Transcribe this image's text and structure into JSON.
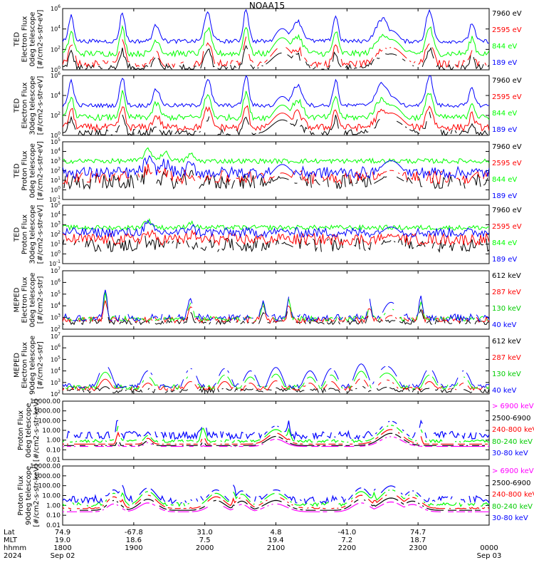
{
  "title": "NOAA15",
  "chart_data": [
    {
      "type": "line",
      "ylabel": [
        "TED",
        "Electron Flux",
        "0deg telescope",
        "[#/cm2-s-str-eV]"
      ],
      "ylog": true,
      "ylim_exp": [
        0,
        6
      ],
      "tick_labels": [
        "10^0",
        "10^2",
        "10^4",
        "10^6"
      ],
      "legend": [
        {
          "text": "7960 eV",
          "color": "#000000"
        },
        {
          "text": "2595 eV",
          "color": "#ff0000"
        },
        {
          "text": "844 eV",
          "color": "#00ff00"
        },
        {
          "text": "189 eV",
          "color": "#0000ff"
        }
      ],
      "series": [
        {
          "name": "7960 eV",
          "color": "#000000",
          "base": 0.2,
          "noise": 0.35,
          "sparse": true
        },
        {
          "name": "2595 eV",
          "color": "#ff0000",
          "base": 0.6,
          "noise": 0.35,
          "sparse": true
        },
        {
          "name": "844 eV",
          "color": "#00ff00",
          "base": 1.6,
          "noise": 0.3
        },
        {
          "name": "189 eV",
          "color": "#0000ff",
          "base": 2.8,
          "noise": 0.2
        }
      ],
      "peaks": [
        [
          0.02,
          2.5,
          0.006
        ],
        [
          0.14,
          2.8,
          0.006
        ],
        [
          0.22,
          1.6,
          0.008
        ],
        [
          0.34,
          2.8,
          0.008
        ],
        [
          0.43,
          3.2,
          0.006
        ],
        [
          0.55,
          2.0,
          0.012
        ],
        [
          0.64,
          2.5,
          0.006
        ],
        [
          0.75,
          2.2,
          0.015
        ],
        [
          0.86,
          3.0,
          0.008
        ],
        [
          0.96,
          1.8,
          0.006
        ]
      ],
      "bumps": [
        [
          0.515,
          3.2,
          0.025
        ],
        [
          0.77,
          3.0,
          0.03
        ]
      ]
    },
    {
      "type": "line",
      "ylabel": [
        "TED",
        "Electron Flux",
        "30deg telescope",
        "[#/cm2-s-str-eV]"
      ],
      "ylog": true,
      "ylim_exp": [
        0,
        6
      ],
      "tick_labels": [
        "10^0",
        "10^2",
        "10^4",
        "10^6"
      ],
      "legend": [
        {
          "text": "7960 eV",
          "color": "#000000"
        },
        {
          "text": "2595 eV",
          "color": "#ff0000"
        },
        {
          "text": "844 eV",
          "color": "#00ff00"
        },
        {
          "text": "189 eV",
          "color": "#0000ff"
        }
      ],
      "series": [
        {
          "name": "7960 eV",
          "color": "#000000",
          "base": 0.2,
          "noise": 0.4,
          "sparse": true
        },
        {
          "name": "2595 eV",
          "color": "#ff0000",
          "base": 0.8,
          "noise": 0.35
        },
        {
          "name": "844 eV",
          "color": "#00ff00",
          "base": 1.8,
          "noise": 0.3
        },
        {
          "name": "189 eV",
          "color": "#0000ff",
          "base": 3.0,
          "noise": 0.2
        }
      ],
      "peaks": [
        [
          0.02,
          2.5,
          0.006
        ],
        [
          0.14,
          2.8,
          0.006
        ],
        [
          0.22,
          1.6,
          0.008
        ],
        [
          0.34,
          2.6,
          0.008
        ],
        [
          0.43,
          3.0,
          0.006
        ],
        [
          0.55,
          2.0,
          0.012
        ],
        [
          0.64,
          2.5,
          0.006
        ],
        [
          0.75,
          2.2,
          0.015
        ],
        [
          0.86,
          3.0,
          0.008
        ],
        [
          0.96,
          1.8,
          0.006
        ]
      ],
      "bumps": [
        [
          0.515,
          3.0,
          0.025
        ],
        [
          0.77,
          3.0,
          0.03
        ]
      ]
    },
    {
      "type": "line",
      "ylabel": [
        "TED",
        "Proton Flux",
        "0deg telescope",
        "[#/cm2-s-str-eV]"
      ],
      "ylog": true,
      "ylim_exp": [
        -1,
        5
      ],
      "tick_labels": [
        "10^-1",
        "10^0",
        "10^1",
        "10^2",
        "10^3",
        "10^4",
        "10^5"
      ],
      "legend": [
        {
          "text": "7960 eV",
          "color": "#000000"
        },
        {
          "text": "2595 eV",
          "color": "#ff0000"
        },
        {
          "text": "844 eV",
          "color": "#00ff00"
        },
        {
          "text": "189 eV",
          "color": "#0000ff"
        }
      ],
      "series": [
        {
          "name": "7960 eV",
          "color": "#000000",
          "base": 0.8,
          "noise": 0.8,
          "sparse": true
        },
        {
          "name": "2595 eV",
          "color": "#ff0000",
          "base": 1.3,
          "noise": 0.7,
          "sparse": true
        },
        {
          "name": "844 eV",
          "color": "#00ff00",
          "base": 3.0,
          "noise": 0.25
        },
        {
          "name": "189 eV",
          "color": "#0000ff",
          "base": 1.8,
          "noise": 0.6
        }
      ],
      "peaks": [
        [
          0.2,
          1.3,
          0.01
        ],
        [
          0.24,
          1.0,
          0.01
        ],
        [
          0.3,
          0.8,
          0.008
        ]
      ],
      "bumps": [
        [
          0.515,
          2.2,
          0.025
        ],
        [
          0.77,
          2.6,
          0.03
        ]
      ]
    },
    {
      "type": "line",
      "ylabel": [
        "TED",
        "Proton Flux",
        "30deg telescope",
        "[#/cm2-s-str-eV]"
      ],
      "ylog": true,
      "ylim_exp": [
        -1,
        5
      ],
      "tick_labels": [
        "10^-1",
        "10^0",
        "10^1",
        "10^2",
        "10^3",
        "10^4",
        "10^5"
      ],
      "legend": [
        {
          "text": "7960 eV",
          "color": "#000000"
        },
        {
          "text": "2595 eV",
          "color": "#ff0000"
        },
        {
          "text": "844 eV",
          "color": "#00ff00"
        },
        {
          "text": "189 eV",
          "color": "#0000ff"
        }
      ],
      "series": [
        {
          "name": "7960 eV",
          "color": "#000000",
          "base": 0.9,
          "noise": 0.7,
          "sparse": true
        },
        {
          "name": "2595 eV",
          "color": "#ff0000",
          "base": 1.5,
          "noise": 0.6
        },
        {
          "name": "844 eV",
          "color": "#00ff00",
          "base": 2.7,
          "noise": 0.25
        },
        {
          "name": "189 eV",
          "color": "#0000ff",
          "base": 2.2,
          "noise": 0.5
        }
      ],
      "peaks": [
        [
          0.2,
          0.8,
          0.01
        ],
        [
          0.3,
          0.6,
          0.008
        ]
      ],
      "bumps": [
        [
          0.515,
          1.8,
          0.025
        ],
        [
          0.77,
          2.2,
          0.03
        ]
      ]
    },
    {
      "type": "line",
      "ylabel": [
        "MEPED",
        "Electron Flux",
        "0deg telescope",
        "[#/cm2-s-str]"
      ],
      "ylog": true,
      "ylim_exp": [
        2,
        7
      ],
      "tick_labels": [
        "10^2",
        "10^3",
        "10^4",
        "10^5",
        "10^6",
        "10^7"
      ],
      "legend": [
        {
          "text": "612 keV",
          "color": "#000000"
        },
        {
          "text": "287 keV",
          "color": "#ff0000"
        },
        {
          "text": "130 keV",
          "color": "#00cc00"
        },
        {
          "text": "40 keV",
          "color": "#0000ff"
        }
      ],
      "series": [
        {
          "name": "612 keV",
          "color": "#000000",
          "base": 2.6,
          "noise": 0.2,
          "sparse": true
        },
        {
          "name": "287 keV",
          "color": "#ff0000",
          "base": 2.8,
          "noise": 0.25,
          "sparse": true
        },
        {
          "name": "130 keV",
          "color": "#00ff00",
          "base": 2.9,
          "noise": 0.2,
          "sparse": true
        },
        {
          "name": "40 keV",
          "color": "#0000ff",
          "base": 3.0,
          "noise": 0.3,
          "sparse": true
        }
      ],
      "peaks": [
        [
          0.1,
          2.5,
          0.004
        ],
        [
          0.3,
          1.5,
          0.005
        ],
        [
          0.47,
          1.5,
          0.004
        ],
        [
          0.53,
          1.8,
          0.004
        ],
        [
          0.72,
          1.4,
          0.004
        ],
        [
          0.84,
          1.8,
          0.004
        ]
      ],
      "bumps": [
        [
          0.47,
          1.5,
          0.02
        ],
        [
          0.77,
          3.2,
          0.025
        ]
      ]
    },
    {
      "type": "line",
      "ylabel": [
        "MEPED",
        "Electron Flux",
        "90deg telescope",
        "[#/cm2-s-str]"
      ],
      "ylog": true,
      "ylim_exp": [
        2,
        7
      ],
      "tick_labels": [
        "10^2",
        "10^3",
        "10^4",
        "10^5",
        "10^6",
        "10^7"
      ],
      "legend": [
        {
          "text": "612 keV",
          "color": "#000000"
        },
        {
          "text": "287 keV",
          "color": "#ff0000"
        },
        {
          "text": "130 keV",
          "color": "#00cc00"
        },
        {
          "text": "40 keV",
          "color": "#0000ff"
        }
      ],
      "series": [
        {
          "name": "612 keV",
          "color": "#000000",
          "base": 2.3,
          "noise": 0.2,
          "sparse": true
        },
        {
          "name": "287 keV",
          "color": "#ff0000",
          "base": 2.5,
          "noise": 0.2,
          "sparse": true
        },
        {
          "name": "130 keV",
          "color": "#00ff00",
          "base": 2.6,
          "noise": 0.2,
          "sparse": true
        },
        {
          "name": "40 keV",
          "color": "#0000ff",
          "base": 2.7,
          "noise": 0.2,
          "sparse": true
        }
      ],
      "peaks": [],
      "bumps": [
        [
          0.1,
          3.5,
          0.02
        ],
        [
          0.2,
          3.0,
          0.02
        ],
        [
          0.3,
          3.2,
          0.02
        ],
        [
          0.38,
          3.2,
          0.02
        ],
        [
          0.44,
          3.0,
          0.02
        ],
        [
          0.5,
          3.3,
          0.02
        ],
        [
          0.58,
          3.0,
          0.02
        ],
        [
          0.63,
          3.2,
          0.02
        ],
        [
          0.7,
          3.6,
          0.02
        ],
        [
          0.76,
          3.4,
          0.03
        ],
        [
          0.86,
          3.2,
          0.02
        ],
        [
          0.94,
          3.0,
          0.02
        ]
      ]
    },
    {
      "type": "scatter",
      "ylabel": [
        "Proton Flux",
        "0deg telescope",
        "[#/cm2-s-str-keV]"
      ],
      "ylog": true,
      "ylim_exp": [
        -2,
        4
      ],
      "tick_labels": [
        "0.01",
        "0.10",
        "1.00",
        "10.00",
        "100.00",
        "1000.00",
        "10000.00"
      ],
      "legend": [
        {
          "text": "> 6900 keV",
          "color": "#ff00ff"
        },
        {
          "text": "2500-6900",
          "color": "#000000"
        },
        {
          "text": "240-800 keV",
          "color": "#ff0000"
        },
        {
          "text": "80-240 keV",
          "color": "#00cc00"
        },
        {
          "text": "30-80 keV",
          "color": "#0000ff"
        }
      ],
      "series": [
        {
          "name": "> 6900 keV",
          "color": "#ff00ff",
          "base": -1.5,
          "noise": 0.1,
          "sparse": true
        },
        {
          "name": "2500-6900",
          "color": "#000000",
          "base": -1.2,
          "noise": 0.1,
          "sparse": true
        },
        {
          "name": "240-800 keV",
          "color": "#ff0000",
          "base": -0.7,
          "noise": 0.15,
          "sparse": true
        },
        {
          "name": "80-240 keV",
          "color": "#00ff00",
          "base": -0.1,
          "noise": 0.15,
          "sparse": true
        },
        {
          "name": "30-80 keV",
          "color": "#0000ff",
          "base": 0.5,
          "noise": 0.4,
          "sparse": true
        }
      ],
      "peaks": [
        [
          0.13,
          1.8,
          0.004
        ],
        [
          0.33,
          1.5,
          0.005
        ],
        [
          0.53,
          1.2,
          0.004
        ],
        [
          0.84,
          1.2,
          0.004
        ]
      ],
      "bumps": [
        [
          0.5,
          1.5,
          0.02
        ],
        [
          0.77,
          2.0,
          0.025
        ],
        [
          0.2,
          0.8,
          0.008
        ]
      ]
    },
    {
      "type": "scatter",
      "ylabel": [
        "Proton Flux",
        "90deg telescope",
        "[#/cm2-s-str-keV]"
      ],
      "ylog": true,
      "ylim_exp": [
        -2,
        4
      ],
      "tick_labels": [
        "0.01",
        "0.10",
        "1.00",
        "10.00",
        "100.00",
        "1000.00",
        "10000.00"
      ],
      "legend": [
        {
          "text": "> 6900 keV",
          "color": "#ff00ff"
        },
        {
          "text": "2500-6900",
          "color": "#000000"
        },
        {
          "text": "240-800 keV",
          "color": "#ff0000"
        },
        {
          "text": "80-240 keV",
          "color": "#00cc00"
        },
        {
          "text": "30-80 keV",
          "color": "#0000ff"
        }
      ],
      "series": [
        {
          "name": "> 6900 keV",
          "color": "#ff00ff",
          "base": -1.5,
          "noise": 0.1,
          "sparse": true
        },
        {
          "name": "2500-6900",
          "color": "#000000",
          "base": -1.0,
          "noise": 0.2,
          "sparse": true
        },
        {
          "name": "240-800 keV",
          "color": "#ff0000",
          "base": -0.4,
          "noise": 0.2,
          "sparse": true
        },
        {
          "name": "80-240 keV",
          "color": "#00ff00",
          "base": 0.1,
          "noise": 0.2,
          "sparse": true
        },
        {
          "name": "30-80 keV",
          "color": "#0000ff",
          "base": 0.6,
          "noise": 0.4,
          "sparse": true
        }
      ],
      "peaks": [
        [
          0.14,
          1.2,
          0.005
        ],
        [
          0.4,
          1.2,
          0.005
        ],
        [
          0.73,
          1.3,
          0.005
        ]
      ],
      "bumps": [
        [
          0.12,
          1.6,
          0.015
        ],
        [
          0.2,
          1.8,
          0.02
        ],
        [
          0.36,
          1.6,
          0.02
        ],
        [
          0.42,
          1.5,
          0.015
        ],
        [
          0.5,
          1.6,
          0.025
        ],
        [
          0.7,
          1.8,
          0.02
        ],
        [
          0.77,
          2.0,
          0.025
        ],
        [
          0.82,
          1.5,
          0.02
        ]
      ]
    }
  ],
  "x_axis": {
    "row_labels": [
      "Lat",
      "MLT",
      "hhmm",
      "2024"
    ],
    "ticks": [
      {
        "x": 0.0,
        "Lat": "74.9",
        "MLT": "19.0",
        "hhmm": "1800",
        "date": "Sep 02"
      },
      {
        "x": 0.1667,
        "Lat": "-67.8",
        "MLT": "18.6",
        "hhmm": "1900",
        "date": ""
      },
      {
        "x": 0.3333,
        "Lat": "31.0",
        "MLT": "7.5",
        "hhmm": "2000",
        "date": ""
      },
      {
        "x": 0.5,
        "Lat": "4.8",
        "MLT": "19.4",
        "hhmm": "2100",
        "date": ""
      },
      {
        "x": 0.6667,
        "Lat": "-41.0",
        "MLT": "7.2",
        "hhmm": "2200",
        "date": ""
      },
      {
        "x": 0.8333,
        "Lat": "74.7",
        "MLT": "18.7",
        "hhmm": "2300",
        "date": ""
      },
      {
        "x": 1.0,
        "Lat": "",
        "MLT": "",
        "hhmm": "0000",
        "date": "Sep 03"
      }
    ]
  }
}
